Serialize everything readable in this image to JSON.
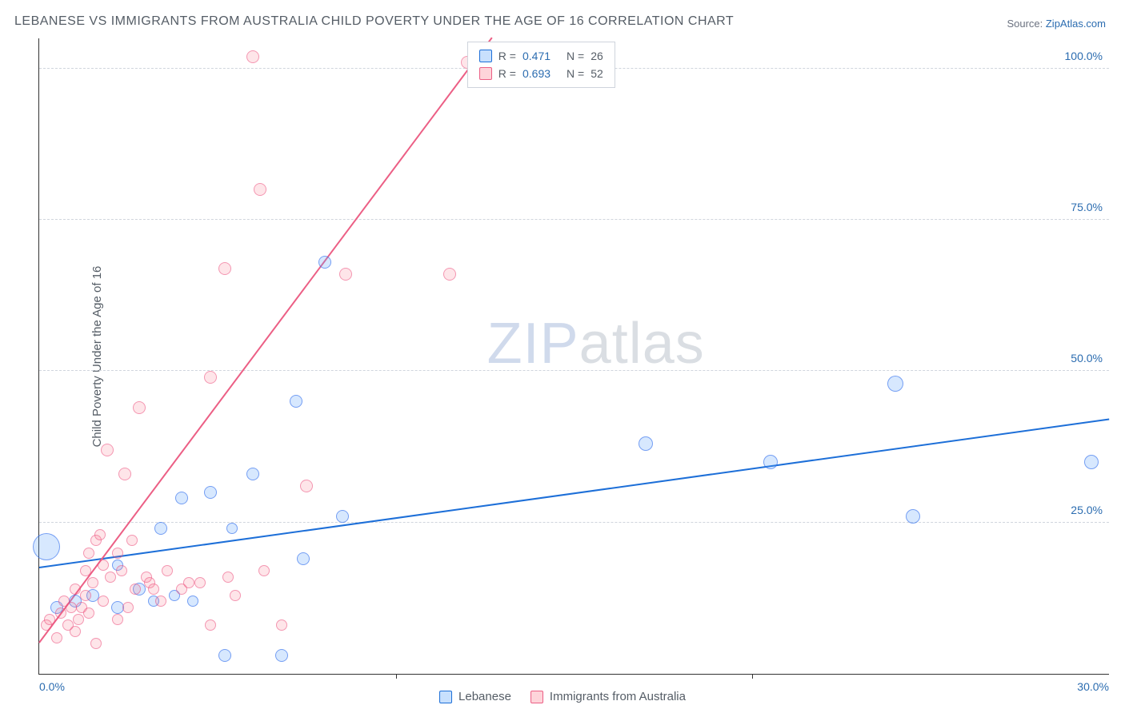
{
  "title": "LEBANESE VS IMMIGRANTS FROM AUSTRALIA CHILD POVERTY UNDER THE AGE OF 16 CORRELATION CHART",
  "source": {
    "label": "Source: ",
    "name": "ZipAtlas.com"
  },
  "ylabel": "Child Poverty Under the Age of 16",
  "watermark": {
    "prefix": "ZIP",
    "suffix": "atlas"
  },
  "chart": {
    "type": "scatter",
    "background_color": "#ffffff",
    "grid_color": "#d0d5dd",
    "axis_color": "#333333",
    "xlim": [
      0,
      30
    ],
    "ylim": [
      0,
      105
    ],
    "x_ticks": [
      0,
      10,
      20,
      30
    ],
    "x_tick_labels": [
      "0.0%",
      "",
      "",
      "30.0%"
    ],
    "y_ticks": [
      25,
      50,
      75,
      100
    ],
    "y_tick_labels": [
      "25.0%",
      "50.0%",
      "75.0%",
      "100.0%"
    ],
    "tick_color": "#2b6cb0",
    "tick_fontsize": 14,
    "label_fontsize": 15,
    "marker_default_size": 16,
    "series": [
      {
        "name": "Lebanese",
        "color_fill": "rgba(96,165,250,0.25)",
        "color_stroke": "rgba(37,99,235,0.55)",
        "R": "0.471",
        "N": "26",
        "trend": {
          "x1": 0,
          "y1": 17.5,
          "x2": 30,
          "y2": 42,
          "color": "#1d6fd8",
          "width": 2
        },
        "points": [
          {
            "x": 0.2,
            "y": 21,
            "s": 34
          },
          {
            "x": 0.5,
            "y": 11,
            "s": 16
          },
          {
            "x": 1.0,
            "y": 12,
            "s": 16
          },
          {
            "x": 1.5,
            "y": 13,
            "s": 16
          },
          {
            "x": 2.2,
            "y": 11,
            "s": 16
          },
          {
            "x": 2.2,
            "y": 18,
            "s": 14
          },
          {
            "x": 2.8,
            "y": 14,
            "s": 16
          },
          {
            "x": 3.2,
            "y": 12,
            "s": 14
          },
          {
            "x": 3.4,
            "y": 24,
            "s": 16
          },
          {
            "x": 3.8,
            "y": 13,
            "s": 14
          },
          {
            "x": 4.0,
            "y": 29,
            "s": 16
          },
          {
            "x": 4.3,
            "y": 12,
            "s": 14
          },
          {
            "x": 4.8,
            "y": 30,
            "s": 16
          },
          {
            "x": 5.2,
            "y": 3,
            "s": 16
          },
          {
            "x": 5.4,
            "y": 24,
            "s": 14
          },
          {
            "x": 6.0,
            "y": 33,
            "s": 16
          },
          {
            "x": 6.8,
            "y": 3,
            "s": 16
          },
          {
            "x": 7.2,
            "y": 45,
            "s": 16
          },
          {
            "x": 7.4,
            "y": 19,
            "s": 16
          },
          {
            "x": 8.0,
            "y": 68,
            "s": 16
          },
          {
            "x": 8.5,
            "y": 26,
            "s": 16
          },
          {
            "x": 17.0,
            "y": 38,
            "s": 18
          },
          {
            "x": 20.5,
            "y": 35,
            "s": 18
          },
          {
            "x": 24.0,
            "y": 48,
            "s": 20
          },
          {
            "x": 24.5,
            "y": 26,
            "s": 18
          },
          {
            "x": 29.5,
            "y": 35,
            "s": 18
          }
        ]
      },
      {
        "name": "Immigrants from Australia",
        "color_fill": "rgba(251,113,133,0.18)",
        "color_stroke": "rgba(236,72,121,0.5)",
        "R": "0.693",
        "N": "52",
        "trend": {
          "x1": 0,
          "y1": 5,
          "x2": 12.7,
          "y2": 105,
          "color": "#ec5f85",
          "width": 2
        },
        "points": [
          {
            "x": 0.2,
            "y": 8,
            "s": 14
          },
          {
            "x": 0.3,
            "y": 9,
            "s": 14
          },
          {
            "x": 0.5,
            "y": 6,
            "s": 14
          },
          {
            "x": 0.6,
            "y": 10,
            "s": 14
          },
          {
            "x": 0.7,
            "y": 12,
            "s": 14
          },
          {
            "x": 0.8,
            "y": 8,
            "s": 14
          },
          {
            "x": 0.9,
            "y": 11,
            "s": 14
          },
          {
            "x": 1.0,
            "y": 7,
            "s": 14
          },
          {
            "x": 1.0,
            "y": 14,
            "s": 14
          },
          {
            "x": 1.1,
            "y": 9,
            "s": 14
          },
          {
            "x": 1.2,
            "y": 11,
            "s": 14
          },
          {
            "x": 1.3,
            "y": 13,
            "s": 14
          },
          {
            "x": 1.3,
            "y": 17,
            "s": 14
          },
          {
            "x": 1.4,
            "y": 10,
            "s": 14
          },
          {
            "x": 1.4,
            "y": 20,
            "s": 14
          },
          {
            "x": 1.5,
            "y": 15,
            "s": 14
          },
          {
            "x": 1.6,
            "y": 5,
            "s": 14
          },
          {
            "x": 1.6,
            "y": 22,
            "s": 14
          },
          {
            "x": 1.7,
            "y": 23,
            "s": 14
          },
          {
            "x": 1.8,
            "y": 12,
            "s": 14
          },
          {
            "x": 1.8,
            "y": 18,
            "s": 14
          },
          {
            "x": 1.9,
            "y": 37,
            "s": 16
          },
          {
            "x": 2.0,
            "y": 16,
            "s": 14
          },
          {
            "x": 2.2,
            "y": 9,
            "s": 14
          },
          {
            "x": 2.2,
            "y": 20,
            "s": 14
          },
          {
            "x": 2.3,
            "y": 17,
            "s": 14
          },
          {
            "x": 2.4,
            "y": 33,
            "s": 16
          },
          {
            "x": 2.5,
            "y": 11,
            "s": 14
          },
          {
            "x": 2.6,
            "y": 22,
            "s": 14
          },
          {
            "x": 2.7,
            "y": 14,
            "s": 14
          },
          {
            "x": 2.8,
            "y": 44,
            "s": 16
          },
          {
            "x": 3.0,
            "y": 16,
            "s": 14
          },
          {
            "x": 3.1,
            "y": 15,
            "s": 14
          },
          {
            "x": 3.2,
            "y": 14,
            "s": 14
          },
          {
            "x": 3.4,
            "y": 12,
            "s": 14
          },
          {
            "x": 3.6,
            "y": 17,
            "s": 14
          },
          {
            "x": 4.0,
            "y": 14,
            "s": 14
          },
          {
            "x": 4.2,
            "y": 15,
            "s": 14
          },
          {
            "x": 4.5,
            "y": 15,
            "s": 14
          },
          {
            "x": 4.8,
            "y": 49,
            "s": 16
          },
          {
            "x": 4.8,
            "y": 8,
            "s": 14
          },
          {
            "x": 5.2,
            "y": 67,
            "s": 16
          },
          {
            "x": 5.3,
            "y": 16,
            "s": 14
          },
          {
            "x": 5.5,
            "y": 13,
            "s": 14
          },
          {
            "x": 6.0,
            "y": 102,
            "s": 16
          },
          {
            "x": 6.2,
            "y": 80,
            "s": 16
          },
          {
            "x": 6.3,
            "y": 17,
            "s": 14
          },
          {
            "x": 6.8,
            "y": 8,
            "s": 14
          },
          {
            "x": 7.5,
            "y": 31,
            "s": 16
          },
          {
            "x": 8.6,
            "y": 66,
            "s": 16
          },
          {
            "x": 11.5,
            "y": 66,
            "s": 16
          },
          {
            "x": 12.0,
            "y": 101,
            "s": 16
          }
        ]
      }
    ]
  },
  "legend_bottom": [
    {
      "series": 0,
      "label": "Lebanese"
    },
    {
      "series": 1,
      "label": "Immigrants from Australia"
    }
  ]
}
